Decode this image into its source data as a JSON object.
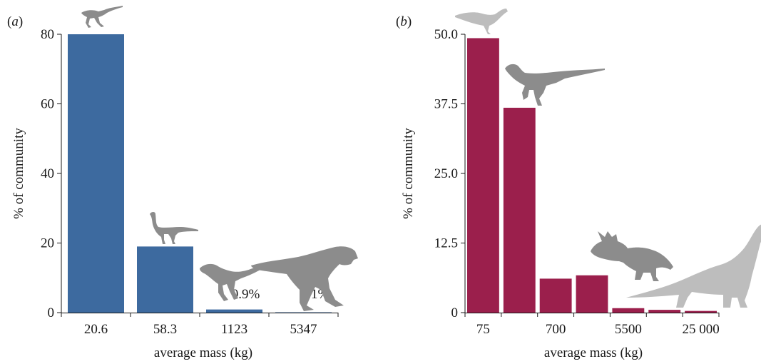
{
  "colors": {
    "panel_a_bar": "#3d6a9f",
    "panel_b_bar": "#9b1f4c",
    "silhouette": "#8c8c8c",
    "silhouette_light": "#bdbdbd"
  },
  "panels": [
    {
      "label": "(a)",
      "label_open": "(",
      "label_letter": "a",
      "label_close": ")"
    },
    {
      "label": "(b)",
      "label_open": "(",
      "label_letter": "b",
      "label_close": ")"
    }
  ],
  "chart_data": [
    {
      "type": "bar",
      "panel": "(a)",
      "xlabel": "average mass (kg)",
      "ylabel": "% of community",
      "ylim": [
        0,
        80
      ],
      "yticks": [
        0,
        20,
        40,
        60,
        80
      ],
      "ytick_labels": [
        "0",
        "20",
        "40",
        "60",
        "80"
      ],
      "categories": [
        "20.6",
        "58.3",
        "1123",
        "5347"
      ],
      "values": [
        80,
        19,
        0.9,
        0.1
      ],
      "data_labels": [
        "",
        "",
        "0.9%",
        "0.1%"
      ],
      "grid": false,
      "silhouettes": [
        "small theropod",
        "ornithomimid",
        "dromaeosaurid",
        "tyrannosaurid"
      ]
    },
    {
      "type": "bar",
      "panel": "(b)",
      "xlabel": "average mass (kg)",
      "ylabel": "% of community",
      "ylim": [
        0,
        50
      ],
      "yticks": [
        0,
        12.5,
        25,
        37.5,
        50
      ],
      "ytick_labels": [
        "0",
        "12.5",
        "25.0",
        "37.5",
        "50.0"
      ],
      "categories": [
        "75",
        "",
        "700",
        "",
        "5500",
        "",
        "25 000"
      ],
      "values": [
        49.3,
        36.8,
        6.1,
        6.7,
        0.8,
        0.5,
        0.3
      ],
      "grid": false,
      "silhouettes": [
        "small ornithopod",
        "pachycephalosaur",
        "ceratopsian",
        "sauropod"
      ]
    }
  ]
}
